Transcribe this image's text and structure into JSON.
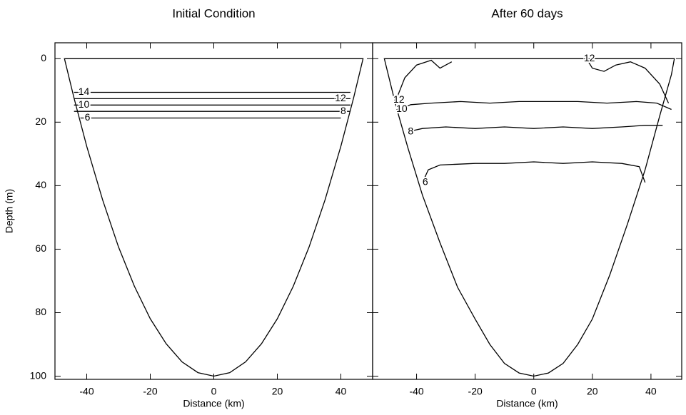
{
  "chart_data": [
    {
      "type": "contour",
      "title": "Initial Condition",
      "xlabel": "Distance (km)",
      "ylabel": "Depth (m)",
      "xlim": [
        -50,
        50
      ],
      "ylim": [
        -5,
        101
      ],
      "y_inverted": true,
      "xticks": [
        -40,
        -20,
        0,
        20,
        40
      ],
      "yticks": [
        0,
        20,
        40,
        60,
        80,
        100
      ],
      "ytick_labels": true,
      "boundary": {
        "x": [
          -47,
          -44,
          -40,
          -35,
          -30,
          -25,
          -20,
          -15,
          -10,
          -5,
          0,
          5,
          10,
          15,
          20,
          25,
          30,
          35,
          40,
          44,
          47
        ],
        "y": [
          0,
          12.4,
          27.6,
          44.5,
          59.3,
          71.7,
          81.9,
          89.8,
          95.5,
          98.9,
          100,
          98.9,
          95.5,
          89.8,
          81.9,
          71.7,
          59.3,
          44.5,
          27.6,
          12.4,
          0
        ]
      },
      "series": [
        {
          "level": 14,
          "x": [
            -44,
            43
          ],
          "y": [
            10.6,
            10.6
          ]
        },
        {
          "level": 12,
          "x": [
            -44,
            43
          ],
          "y": [
            12.6,
            12.6
          ]
        },
        {
          "level": 10,
          "x": [
            -44,
            43
          ],
          "y": [
            14.6,
            14.6
          ]
        },
        {
          "level": 8,
          "x": [
            -44,
            43
          ],
          "y": [
            16.6,
            16.6
          ]
        },
        {
          "level": 6,
          "x": [
            -42,
            40
          ],
          "y": [
            18.7,
            18.7
          ]
        }
      ]
    },
    {
      "type": "contour",
      "title": "After 60 days",
      "xlabel": "Distance (km)",
      "xlim": [
        -55,
        50.5
      ],
      "ylim": [
        -5,
        101
      ],
      "y_inverted": true,
      "xticks": [
        -40,
        -20,
        0,
        20,
        40
      ],
      "yticks": [
        0,
        20,
        40,
        60,
        80,
        100
      ],
      "ytick_labels": false,
      "boundary": {
        "x": [
          -51,
          -47,
          -43,
          -38,
          -32,
          -26,
          -20,
          -15,
          -10,
          -5,
          0,
          5,
          10,
          15,
          20,
          26,
          32,
          38,
          43,
          47,
          48
        ],
        "y": [
          0,
          15,
          28,
          43,
          58,
          72,
          82,
          90,
          96,
          99,
          100,
          99,
          96,
          90,
          82,
          68,
          52,
          35,
          18,
          5,
          0
        ]
      },
      "series": [
        {
          "level": 12,
          "x": [
            -47,
            -44,
            -40,
            -35,
            -32,
            -28,
            null,
            18,
            20,
            24,
            28,
            33,
            38,
            43,
            46
          ],
          "y": [
            13,
            6,
            2,
            0.5,
            3,
            1,
            null,
            0,
            3,
            4,
            2,
            1,
            3,
            8,
            14
          ]
        },
        {
          "level": 10,
          "x": [
            -46,
            -42,
            -35,
            -25,
            -15,
            -5,
            5,
            15,
            25,
            35,
            42,
            47
          ],
          "y": [
            16,
            14.5,
            14,
            13.5,
            14,
            13.5,
            13.5,
            13.5,
            14,
            13.5,
            14,
            16
          ]
        },
        {
          "level": 8,
          "x": [
            -43,
            -38,
            -30,
            -20,
            -10,
            0,
            10,
            20,
            30,
            38,
            44
          ],
          "y": [
            23,
            22,
            21.5,
            22,
            21.5,
            22,
            21.5,
            22,
            21.5,
            21,
            21
          ]
        },
        {
          "level": 6,
          "x": [
            -38,
            -36,
            -32,
            -20,
            -10,
            0,
            10,
            20,
            30,
            36,
            38
          ],
          "y": [
            39,
            35,
            33.5,
            33,
            33,
            32.5,
            33,
            32.5,
            33,
            34,
            39
          ]
        }
      ]
    }
  ]
}
